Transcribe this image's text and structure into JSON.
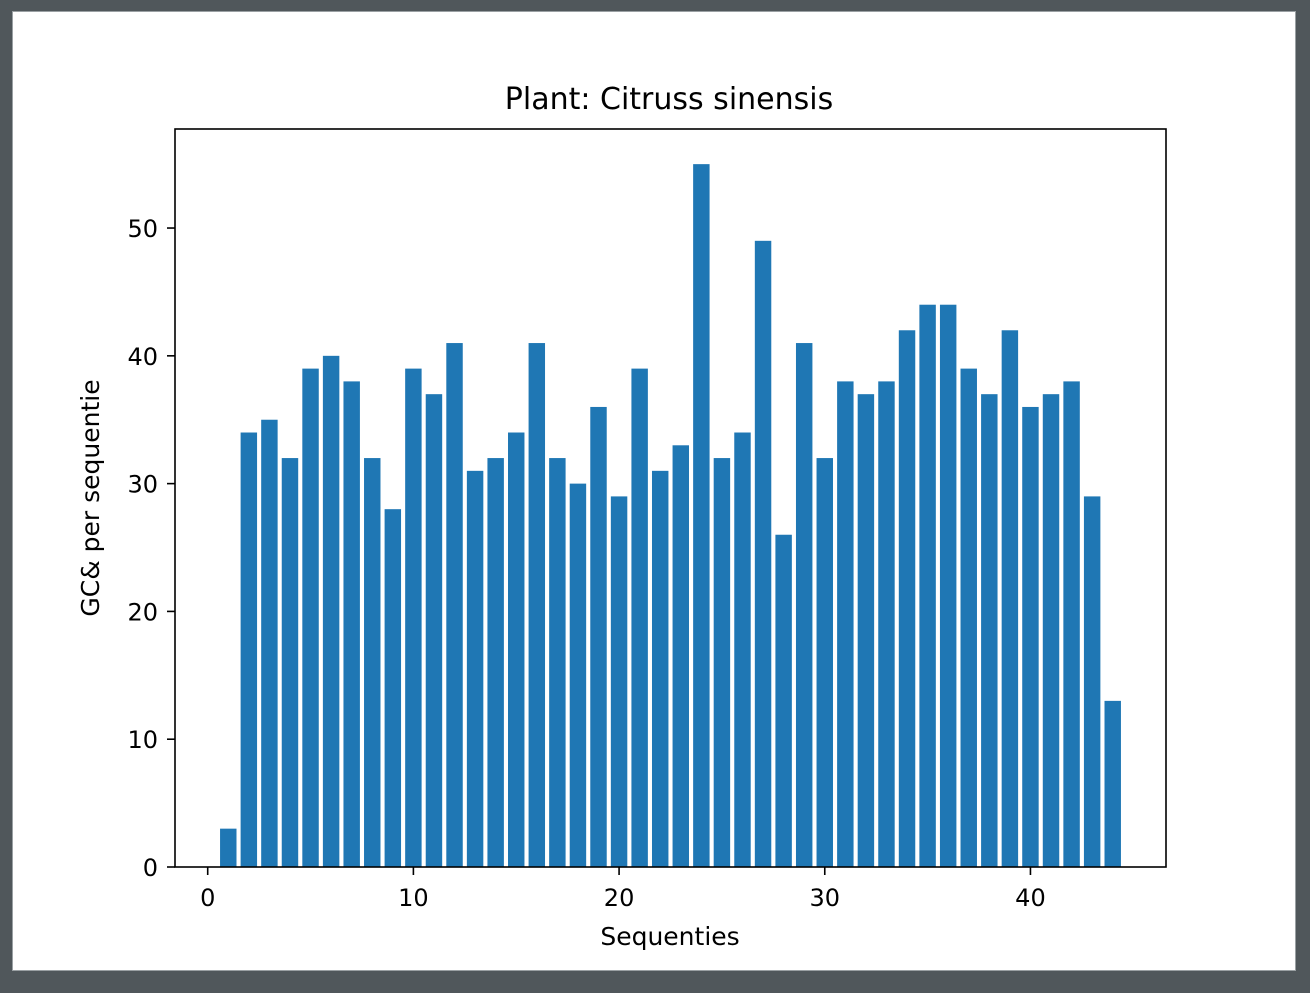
{
  "chart_data": {
    "type": "bar",
    "title": "Plant: Citruss sinensis",
    "xlabel": "Sequenties",
    "ylabel": "GC& per sequentie",
    "x": [
      1,
      2,
      3,
      4,
      5,
      6,
      7,
      8,
      9,
      10,
      11,
      12,
      13,
      14,
      15,
      16,
      17,
      18,
      19,
      20,
      21,
      22,
      23,
      24,
      25,
      26,
      27,
      28,
      29,
      30,
      31,
      32,
      33,
      34,
      35,
      36,
      37,
      38,
      39,
      40,
      41,
      42,
      43,
      44
    ],
    "values": [
      3,
      34,
      35,
      32,
      39,
      40,
      38,
      32,
      28,
      39,
      37,
      41,
      31,
      32,
      34,
      41,
      32,
      30,
      36,
      29,
      39,
      31,
      33,
      55,
      32,
      34,
      49,
      26,
      41,
      32,
      38,
      37,
      38,
      42,
      44,
      44,
      39,
      37,
      42,
      36,
      37,
      38,
      29,
      13
    ],
    "xlim": [
      -1.59,
      46.59
    ],
    "ylim": [
      0,
      57.75
    ],
    "xticks": [
      0,
      10,
      20,
      30,
      40
    ],
    "xtick_labels": [
      "0",
      "10",
      "20",
      "30",
      "40"
    ],
    "yticks": [
      0,
      10,
      20,
      30,
      40,
      50
    ],
    "ytick_labels": [
      "0",
      "10",
      "20",
      "30",
      "40",
      "50"
    ],
    "bar_color": "#1f77b4",
    "grid": false
  }
}
